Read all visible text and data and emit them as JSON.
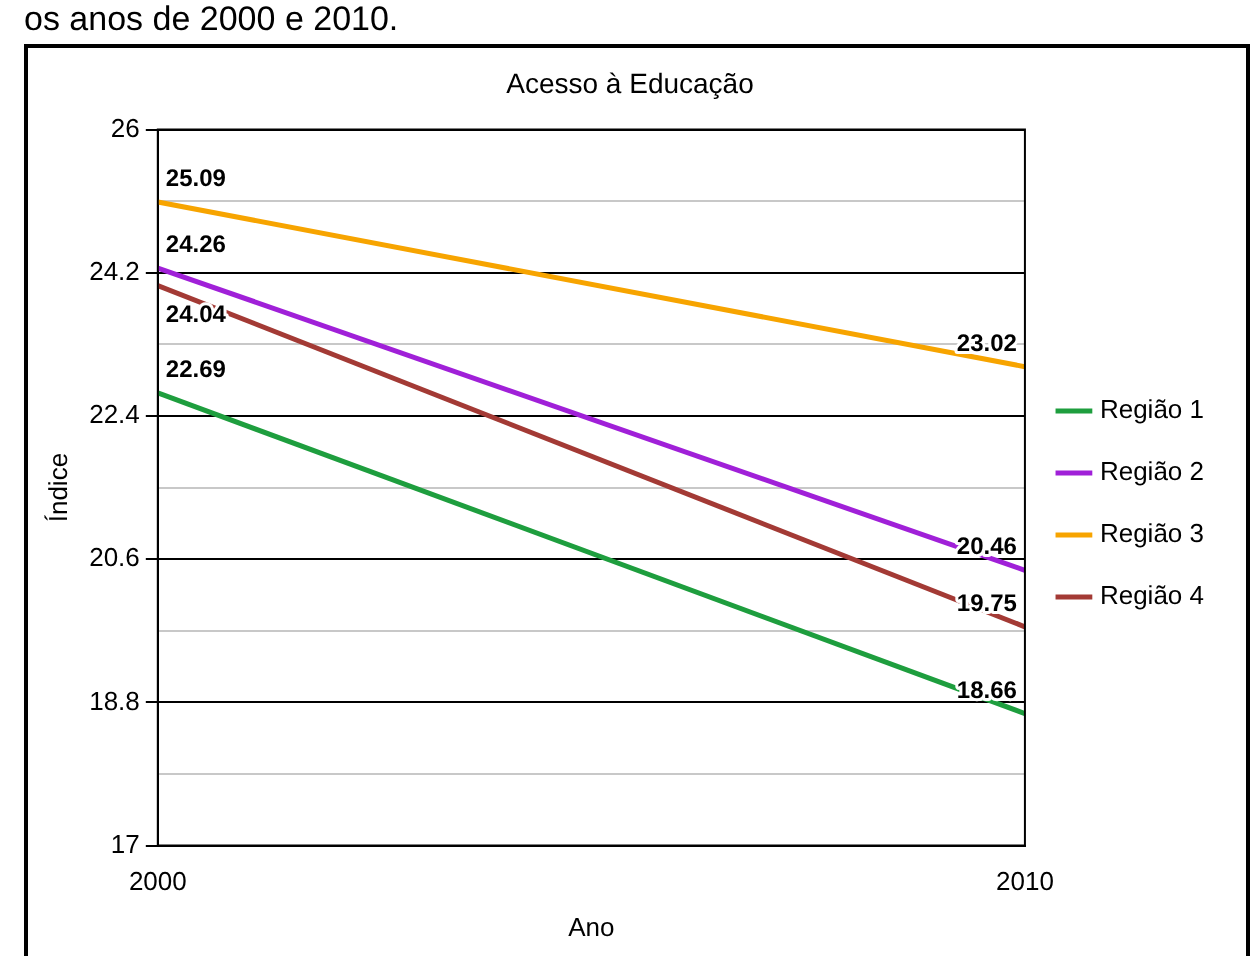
{
  "chart_data": {
    "type": "line",
    "title": "Acesso à Educação",
    "xlabel": "Ano",
    "ylabel": "Índice",
    "annotations": [
      "os anos de 2000 e 2010."
    ],
    "x": [
      2000,
      2010
    ],
    "xlim": [
      2000,
      2010
    ],
    "xticks": [
      2000,
      2010
    ],
    "ylim": [
      17,
      26
    ],
    "yticks": [
      17,
      {
        "value": 17.9,
        "label": null
      },
      18.8,
      {
        "value": 19.7,
        "label": null
      },
      20.6,
      {
        "value": 21.5,
        "label": null
      },
      22.4,
      {
        "value": 23.3,
        "label": null
      },
      24.2,
      {
        "value": 25.1,
        "label": null
      },
      26
    ],
    "series": [
      {
        "name": "Região 1",
        "color": "#1e9e3e",
        "values": [
          22.69,
          18.66
        ]
      },
      {
        "name": "Região 2",
        "color": "#a020d8",
        "values": [
          24.26,
          20.46
        ]
      },
      {
        "name": "Região 3",
        "color": "#f7a400",
        "values": [
          25.09,
          23.02
        ]
      },
      {
        "name": "Região 4",
        "color": "#a33a35",
        "values": [
          24.04,
          19.75
        ]
      }
    ],
    "data_labels": true,
    "grid": "y",
    "legend": "right",
    "marker": "none",
    "line_style": "solid"
  }
}
